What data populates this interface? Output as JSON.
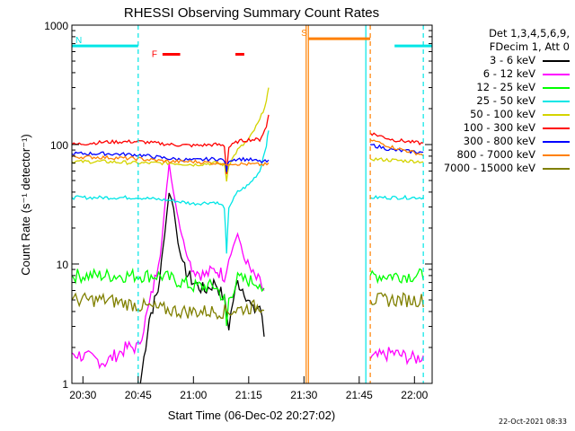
{
  "chart_data": {
    "type": "line",
    "title": "RHESSI Observing Summary Count Rates",
    "xlabel": "Start Time (06-Dec-02 20:27:02)",
    "ylabel": "Count Rate (s⁻¹ detector⁻¹)",
    "y_scale": "log",
    "ylim": [
      1,
      1000
    ],
    "xlim_minutes": [
      20.45,
      22.08
    ],
    "x_ticks": [
      {
        "t": 20.5,
        "label": "20:30"
      },
      {
        "t": 20.75,
        "label": "20:45"
      },
      {
        "t": 21.0,
        "label": "21:00"
      },
      {
        "t": 21.25,
        "label": "21:15"
      },
      {
        "t": 21.5,
        "label": "21:30"
      },
      {
        "t": 21.75,
        "label": "21:45"
      },
      {
        "t": 22.0,
        "label": "22:00"
      }
    ],
    "y_ticks": [
      {
        "v": 1,
        "label": "1"
      },
      {
        "v": 10,
        "label": "10"
      },
      {
        "v": 100,
        "label": "100"
      },
      {
        "v": 1000,
        "label": "1000"
      }
    ],
    "flags": [
      {
        "letter": "N",
        "color": "#00e6e6",
        "segments": [
          [
            20.45,
            20.75
          ],
          [
            21.91,
            22.08
          ]
        ],
        "y": 670
      },
      {
        "letter": "F",
        "color": "#ff0000",
        "segments": [
          [
            20.86,
            20.94
          ],
          [
            21.19,
            21.23
          ]
        ],
        "y": 570
      },
      {
        "letter": "S",
        "color": "#ff8000",
        "segments": [
          [
            21.52,
            21.8
          ]
        ],
        "y": 770
      }
    ],
    "vlines": [
      {
        "t": 20.75,
        "color": "#00e6e6",
        "dash": true
      },
      {
        "t": 21.51,
        "color": "#ff8000",
        "dash": false
      },
      {
        "t": 21.52,
        "color": "#ff8000",
        "dash": false
      },
      {
        "t": 21.78,
        "color": "#00e6e6",
        "dash": false
      },
      {
        "t": 21.8,
        "color": "#ff8000",
        "dash": true
      },
      {
        "t": 22.04,
        "color": "#00e6e6",
        "dash": true
      }
    ],
    "series": [
      {
        "name": "3 - 6 keV",
        "color": "#000000",
        "points": [
          [
            20.76,
            1.0
          ],
          [
            20.8,
            3.5
          ],
          [
            20.84,
            6
          ],
          [
            20.87,
            18
          ],
          [
            20.89,
            40
          ],
          [
            20.91,
            30
          ],
          [
            20.93,
            15
          ],
          [
            20.96,
            9
          ],
          [
            21.0,
            7
          ],
          [
            21.05,
            6
          ],
          [
            21.1,
            7
          ],
          [
            21.14,
            5
          ],
          [
            21.16,
            3
          ],
          [
            21.18,
            5
          ],
          [
            21.2,
            7
          ],
          [
            21.23,
            6
          ],
          [
            21.27,
            4
          ],
          [
            21.3,
            4.5
          ],
          [
            21.32,
            2.5
          ]
        ]
      },
      {
        "name": "6 - 12 keV",
        "color": "#ff00ff",
        "points": [
          [
            20.45,
            1.8
          ],
          [
            20.6,
            1.5
          ],
          [
            20.7,
            2.0
          ],
          [
            20.75,
            2.0
          ],
          [
            20.8,
            4.5
          ],
          [
            20.85,
            12
          ],
          [
            20.88,
            45
          ],
          [
            20.89,
            70
          ],
          [
            20.91,
            40
          ],
          [
            20.94,
            20
          ],
          [
            20.97,
            12
          ],
          [
            21.0,
            9
          ],
          [
            21.05,
            8
          ],
          [
            21.1,
            9
          ],
          [
            21.14,
            8
          ],
          [
            21.16,
            11
          ],
          [
            21.18,
            14
          ],
          [
            21.2,
            18
          ],
          [
            21.23,
            11
          ],
          [
            21.27,
            8
          ],
          [
            21.3,
            7
          ],
          [
            21.32,
            6
          ],
          [
            21.8,
            1.6
          ],
          [
            21.9,
            1.8
          ],
          [
            22.0,
            1.6
          ],
          [
            22.04,
            1.7
          ]
        ]
      },
      {
        "name": "12 - 25 keV",
        "color": "#00ff00",
        "points": [
          [
            20.45,
            8
          ],
          [
            20.6,
            8
          ],
          [
            20.75,
            8
          ],
          [
            20.85,
            8
          ],
          [
            20.9,
            7.5
          ],
          [
            21.0,
            6.5
          ],
          [
            21.1,
            6.5
          ],
          [
            21.14,
            5
          ],
          [
            21.15,
            3
          ],
          [
            21.16,
            5
          ],
          [
            21.2,
            7.5
          ],
          [
            21.3,
            7
          ],
          [
            21.32,
            5.5
          ],
          [
            21.8,
            8
          ],
          [
            21.9,
            8
          ],
          [
            22.04,
            8
          ]
        ]
      },
      {
        "name": "25 - 50 keV",
        "color": "#00e6e6",
        "points": [
          [
            20.45,
            36
          ],
          [
            20.6,
            36
          ],
          [
            20.75,
            36
          ],
          [
            20.9,
            34
          ],
          [
            21.0,
            32
          ],
          [
            21.1,
            33
          ],
          [
            21.14,
            30
          ],
          [
            21.15,
            12
          ],
          [
            21.16,
            30
          ],
          [
            21.2,
            40
          ],
          [
            21.25,
            46
          ],
          [
            21.3,
            60
          ],
          [
            21.33,
            100
          ],
          [
            21.34,
            130
          ],
          [
            21.8,
            36
          ],
          [
            21.9,
            36
          ],
          [
            22.04,
            36
          ]
        ]
      },
      {
        "name": "50 - 100 keV",
        "color": "#d4d400",
        "points": [
          [
            20.45,
            72
          ],
          [
            20.6,
            72
          ],
          [
            20.75,
            70
          ],
          [
            20.9,
            70
          ],
          [
            21.0,
            68
          ],
          [
            21.1,
            70
          ],
          [
            21.14,
            68
          ],
          [
            21.15,
            50
          ],
          [
            21.16,
            68
          ],
          [
            21.2,
            90
          ],
          [
            21.25,
            110
          ],
          [
            21.3,
            160
          ],
          [
            21.33,
            230
          ],
          [
            21.34,
            290
          ],
          [
            21.8,
            76
          ],
          [
            21.9,
            74
          ],
          [
            22.04,
            72
          ]
        ]
      },
      {
        "name": "100 - 300 keV",
        "color": "#ff0000",
        "points": [
          [
            20.45,
            100
          ],
          [
            20.6,
            105
          ],
          [
            20.75,
            106
          ],
          [
            20.9,
            100
          ],
          [
            21.0,
            98
          ],
          [
            21.1,
            100
          ],
          [
            21.14,
            98
          ],
          [
            21.15,
            58
          ],
          [
            21.16,
            95
          ],
          [
            21.2,
            106
          ],
          [
            21.25,
            110
          ],
          [
            21.3,
            110
          ],
          [
            21.33,
            140
          ],
          [
            21.34,
            180
          ],
          [
            21.8,
            125
          ],
          [
            21.9,
            110
          ],
          [
            22.04,
            102
          ]
        ]
      },
      {
        "name": "300 - 800 keV",
        "color": "#0000ff",
        "points": [
          [
            20.45,
            84
          ],
          [
            20.6,
            84
          ],
          [
            20.75,
            82
          ],
          [
            20.9,
            76
          ],
          [
            21.0,
            74
          ],
          [
            21.1,
            76
          ],
          [
            21.14,
            74
          ],
          [
            21.15,
            60
          ],
          [
            21.16,
            74
          ],
          [
            21.2,
            76
          ],
          [
            21.25,
            75
          ],
          [
            21.3,
            72
          ],
          [
            21.34,
            72
          ],
          [
            21.8,
            100
          ],
          [
            21.9,
            90
          ],
          [
            22.04,
            86
          ]
        ]
      },
      {
        "name": "800 - 7000 keV",
        "color": "#ff8000",
        "points": [
          [
            20.45,
            79
          ],
          [
            20.6,
            78
          ],
          [
            20.75,
            76
          ],
          [
            20.9,
            72
          ],
          [
            21.0,
            72
          ],
          [
            21.1,
            70
          ],
          [
            21.14,
            70
          ],
          [
            21.15,
            66
          ],
          [
            21.16,
            70
          ],
          [
            21.2,
            69
          ],
          [
            21.3,
            68
          ],
          [
            21.34,
            68
          ],
          [
            21.8,
            110
          ],
          [
            21.9,
            95
          ],
          [
            22.04,
            82
          ]
        ]
      },
      {
        "name": "7000 - 15000 keV",
        "color": "#808000",
        "points": [
          [
            20.45,
            5
          ],
          [
            20.6,
            5
          ],
          [
            20.75,
            4.5
          ],
          [
            20.85,
            4.2
          ],
          [
            20.95,
            4
          ],
          [
            21.05,
            4
          ],
          [
            21.15,
            4
          ],
          [
            21.25,
            4.3
          ],
          [
            21.32,
            4.5
          ],
          [
            21.8,
            5
          ],
          [
            21.9,
            5
          ],
          [
            22.04,
            5
          ]
        ]
      }
    ]
  },
  "legend": {
    "det_line": "Det 1,3,4,5,6,9,",
    "fdecim_line": "FDecim 1, Att 0"
  },
  "timestamp": "22-Oct-2021 08:33"
}
